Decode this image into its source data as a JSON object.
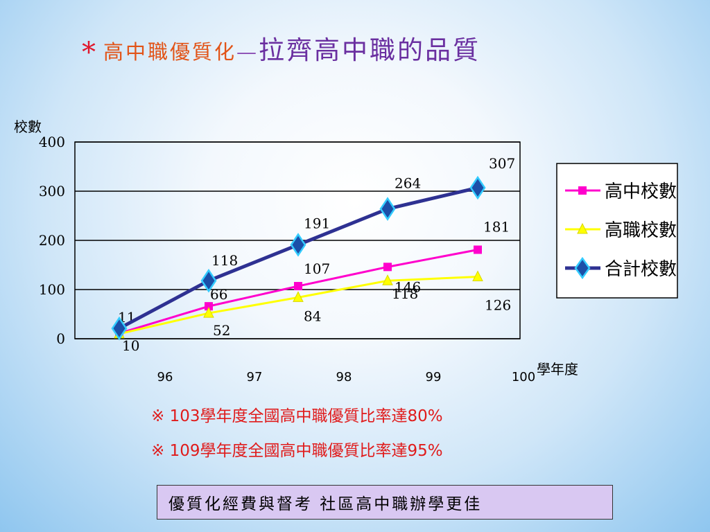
{
  "title": {
    "bullet": "*",
    "part1": "高中職優質化",
    "dash": "—",
    "part2": "拉齊高中職的品質"
  },
  "chart_data": {
    "type": "line",
    "categories": [
      "96",
      "97",
      "98",
      "99",
      "100"
    ],
    "ylabel": "校數",
    "xlabel": "學年度",
    "ylim": [
      0,
      400
    ],
    "yticks": [
      0,
      100,
      200,
      300,
      400
    ],
    "grid": true,
    "legend_position": "right",
    "series": [
      {
        "name": "高中校數",
        "values": [
          11,
          66,
          107,
          146,
          181
        ],
        "color": "#ff00cc",
        "marker": "square",
        "labels": [
          "11",
          "66",
          "107",
          "146",
          "181"
        ]
      },
      {
        "name": "高職校數",
        "values": [
          10,
          52,
          84,
          118,
          126
        ],
        "color": "#ffff00",
        "marker": "triangle",
        "labels": [
          "10",
          "52",
          "84",
          "118",
          "126"
        ]
      },
      {
        "name": "合計校數",
        "values": [
          21,
          118,
          191,
          264,
          307
        ],
        "color": "#2e3192",
        "marker": "diamond",
        "labels": [
          "",
          "118",
          "191",
          "264",
          "307"
        ]
      }
    ]
  },
  "notes": [
    "※ 103學年度全國高中職優質比率達80%",
    "※ 109學年度全國高中職優質比率達95%"
  ],
  "bottom_box": "優質化經費與督考 社區高中職辦學更佳"
}
